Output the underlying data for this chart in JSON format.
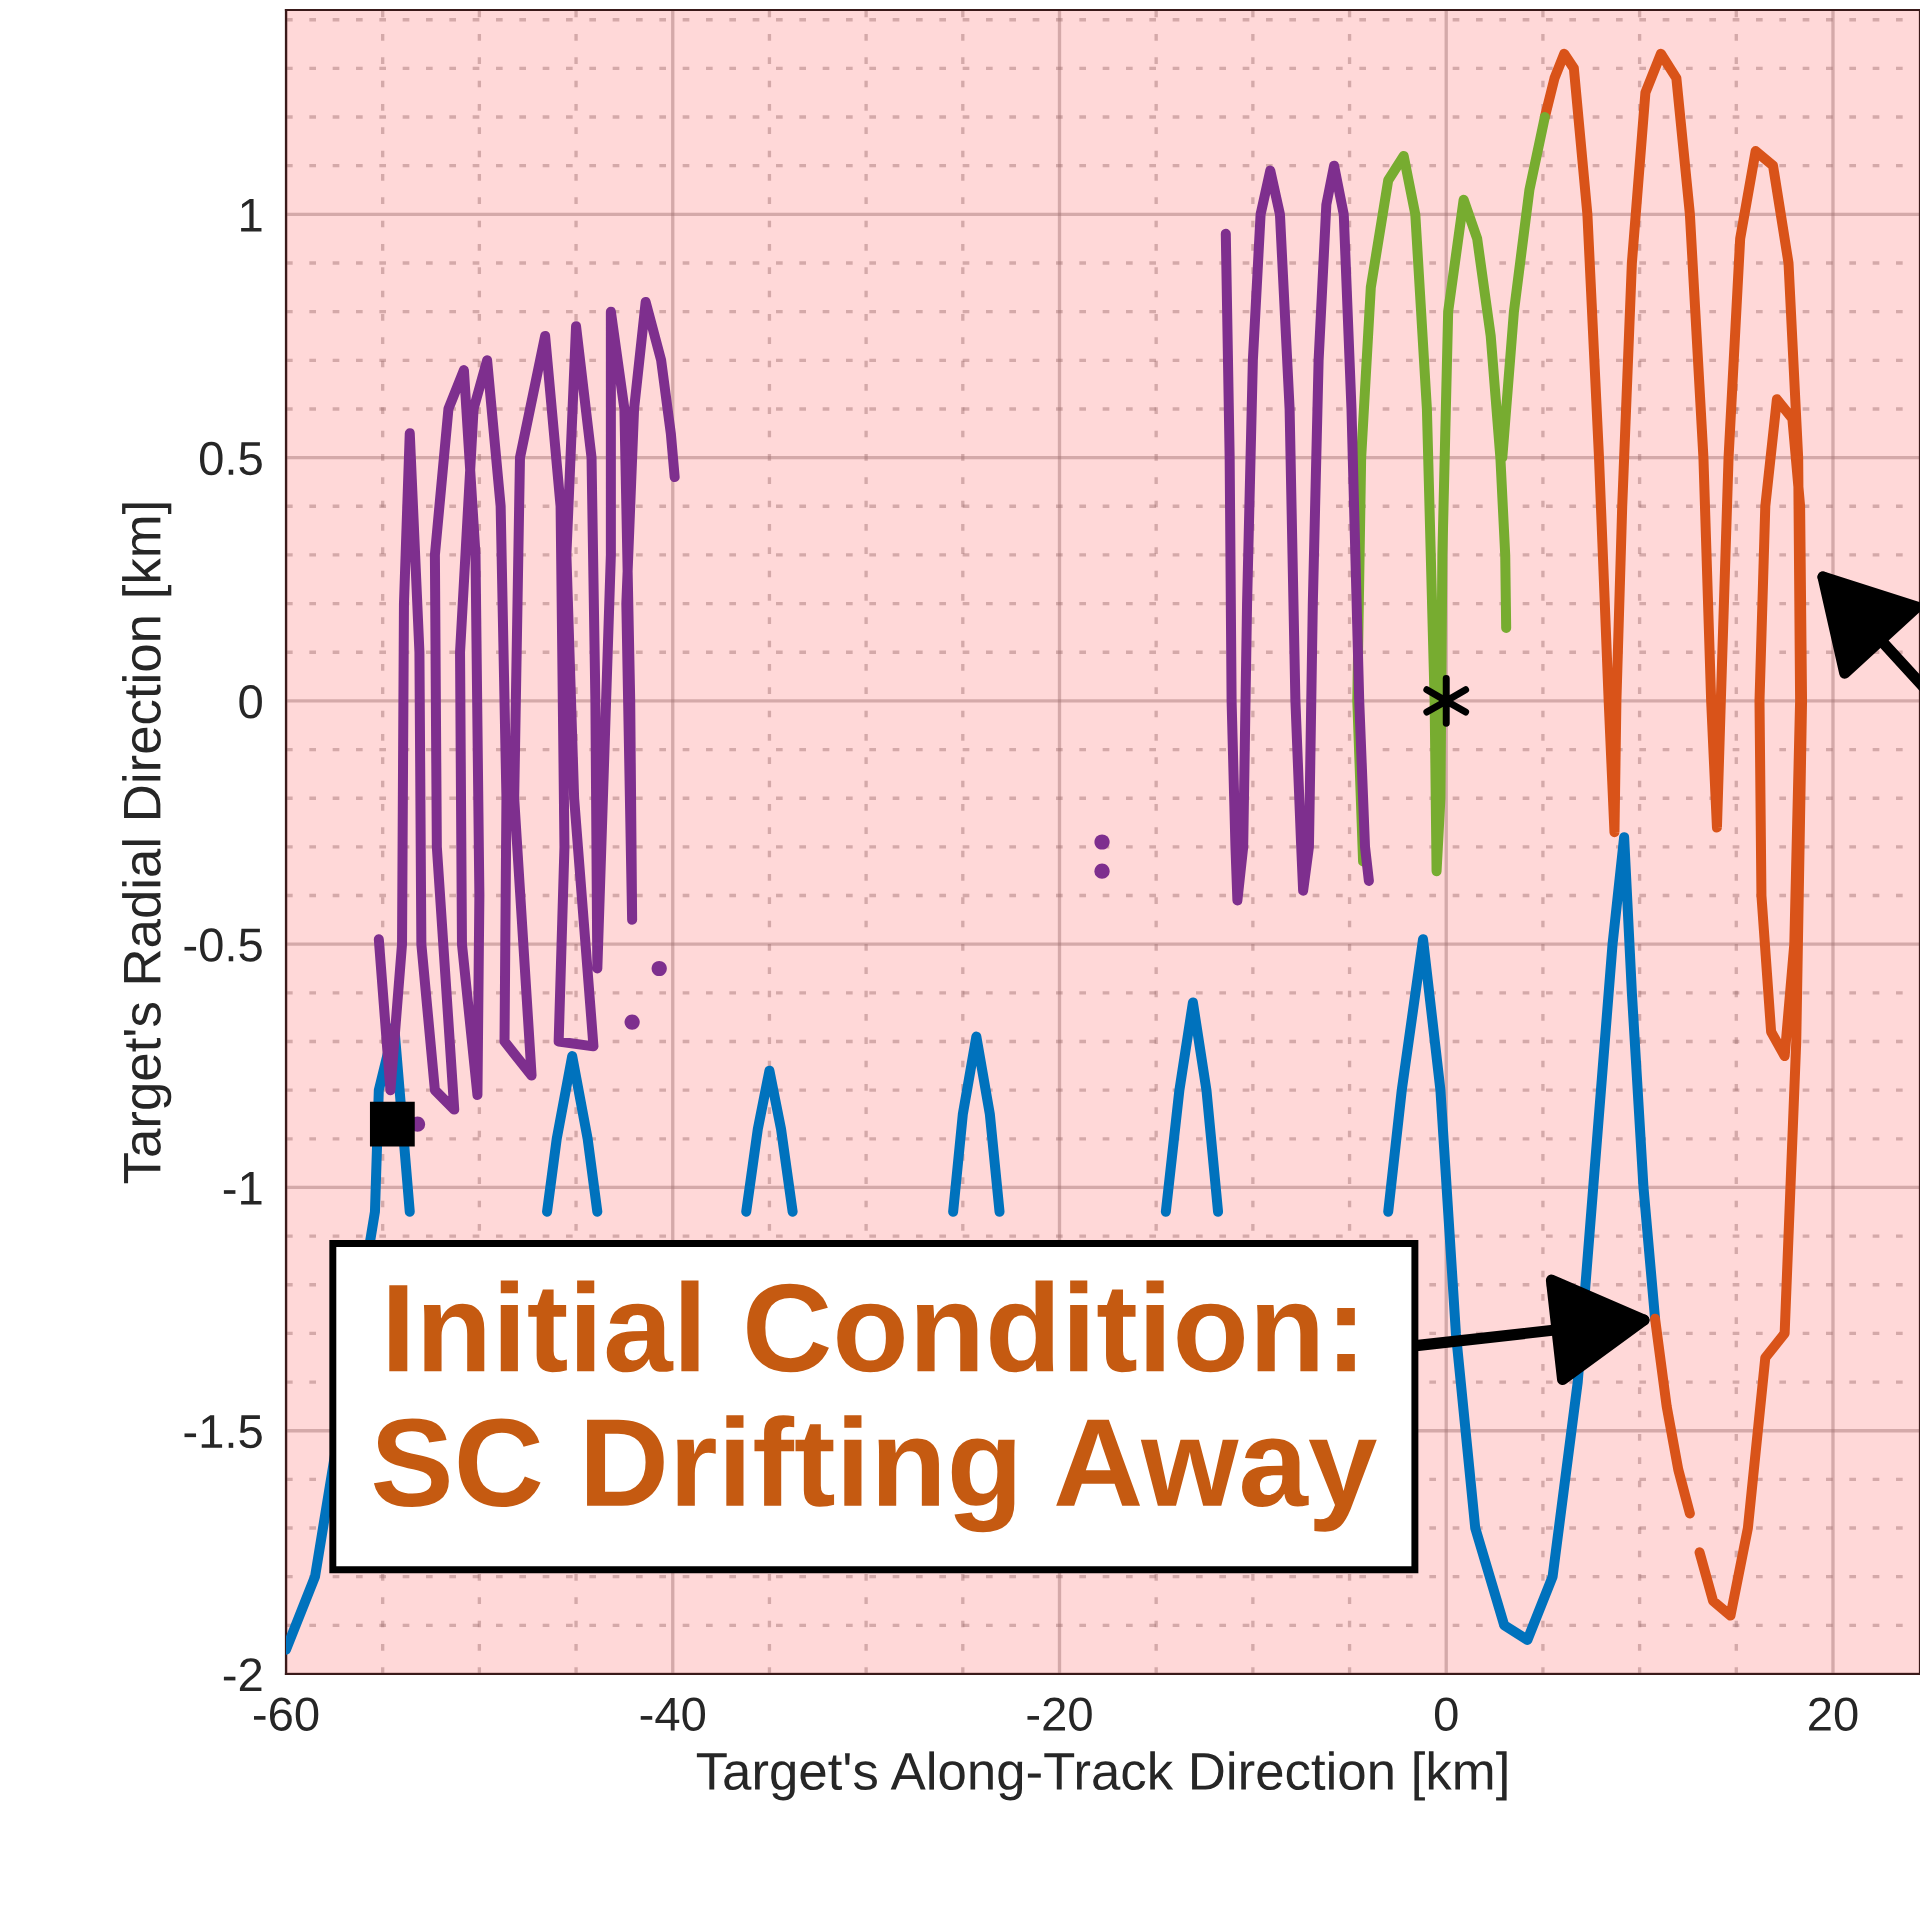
{
  "chart_data": {
    "type": "line",
    "xlabel": "Target's Along-Track Direction [km]",
    "ylabel": "Target's Radial Direction [km]",
    "xlim": [
      -60,
      24.5
    ],
    "ylim": [
      -2,
      1.42
    ],
    "xticks": [
      -60,
      {
        "value": -55,
        "label": null
      },
      {
        "value": -50,
        "label": null
      },
      {
        "value": -45,
        "label": null
      },
      -40,
      {
        "value": -35,
        "label": null
      },
      {
        "value": -30,
        "label": null
      },
      {
        "value": -25,
        "label": null
      },
      -20,
      {
        "value": -15,
        "label": null
      },
      {
        "value": -10,
        "label": null
      },
      {
        "value": -5,
        "label": null
      },
      0,
      {
        "value": 5,
        "label": null
      },
      {
        "value": 10,
        "label": null
      },
      {
        "value": 15,
        "label": null
      },
      20
    ],
    "yticks": [
      -2,
      {
        "value": -1.9,
        "label": null
      },
      {
        "value": -1.8,
        "label": null
      },
      {
        "value": -1.7,
        "label": null
      },
      {
        "value": -1.6,
        "label": null
      },
      -1.5,
      {
        "value": -1.4,
        "label": null
      },
      {
        "value": -1.3,
        "label": null
      },
      {
        "value": -1.2,
        "label": null
      },
      {
        "value": -1.1,
        "label": null
      },
      -1,
      {
        "value": -0.9,
        "label": null
      },
      {
        "value": -0.8,
        "label": null
      },
      {
        "value": -0.7,
        "label": null
      },
      {
        "value": -0.6,
        "label": null
      },
      -0.5,
      {
        "value": -0.4,
        "label": null
      },
      {
        "value": -0.3,
        "label": null
      },
      {
        "value": -0.2,
        "label": null
      },
      {
        "value": -0.1,
        "label": null
      },
      0,
      {
        "value": 0.1,
        "label": null
      },
      {
        "value": 0.2,
        "label": null
      },
      {
        "value": 0.3,
        "label": null
      },
      {
        "value": 0.4,
        "label": null
      },
      0.5,
      {
        "value": 0.6,
        "label": null
      },
      {
        "value": 0.7,
        "label": null
      },
      {
        "value": 0.8,
        "label": null
      },
      {
        "value": 0.9,
        "label": null
      },
      1,
      {
        "value": 1.1,
        "label": null
      },
      {
        "value": 1.2,
        "label": null
      },
      {
        "value": 1.3,
        "label": null
      },
      {
        "value": 1.4,
        "label": null
      }
    ],
    "grid": true,
    "series": [
      {
        "color": "#0072bd",
        "x": [
          -60,
          -58.5,
          -55.4,
          -55.2,
          -54.4,
          -53.6,
          -50.5,
          -46.5,
          -46,
          -45.2,
          -44.4,
          -43.9,
          -40,
          -36.2,
          -35.6,
          -35,
          -34.4,
          -33.8,
          -30.5,
          -25.5,
          -25,
          -24.3,
          -23.6,
          -23.1,
          -19.5,
          -14.5,
          -13.8,
          -13.1,
          -12.4,
          -11.8,
          -6.9,
          -3.0,
          -2.3,
          -1.2,
          -0.3,
          0.5,
          1.5,
          3,
          4.2,
          5.5,
          6.8,
          7.8,
          8.6,
          9.2,
          9.6,
          10.2,
          10.8
        ],
        "values": [
          -1.95,
          -1.8,
          -1.05,
          -0.8,
          -0.67,
          -1.05,
          null,
          -1.05,
          -0.9,
          -0.73,
          -0.9,
          -1.05,
          null,
          -1.05,
          -0.88,
          -0.76,
          -0.88,
          -1.05,
          null,
          -1.05,
          -0.85,
          -0.69,
          -0.85,
          -1.05,
          null,
          -1.05,
          -0.8,
          -0.62,
          -0.8,
          -1.05,
          null,
          -1.05,
          -0.8,
          -0.49,
          -0.8,
          -1.3,
          -1.7,
          -1.9,
          -1.93,
          -1.8,
          -1.4,
          -0.9,
          -0.5,
          -0.28,
          -0.6,
          -1.0,
          -1.27
        ]
      },
      {
        "color": "#d95319",
        "x": [
          10.8,
          11.4,
          12.0,
          12.6,
          12.8,
          13.1,
          13.8,
          14.7,
          15.6,
          16.5,
          17.5,
          18.1,
          18.4,
          18.3,
          17.9,
          17.1,
          16.5,
          16.2,
          16.3,
          16.8,
          17.5,
          18.0,
          18.3,
          18.2,
          17.7,
          16.9,
          16.0,
          15.2,
          14.6,
          14.2,
          14.0,
          13.7,
          13.3,
          12.6,
          11.9,
          11.1,
          10.3,
          9.6,
          9.1,
          8.8,
          8.7,
          8.4,
          7.9,
          7.3,
          6.6,
          6.1,
          5.6,
          5.1
        ],
        "values": [
          -1.27,
          -1.45,
          -1.58,
          -1.67,
          null,
          -1.75,
          -1.85,
          -1.88,
          -1.7,
          -1.35,
          -1.3,
          -0.7,
          0,
          0.4,
          0.58,
          0.62,
          0.4,
          0,
          -0.4,
          -0.68,
          -0.73,
          -0.5,
          0,
          0.5,
          0.9,
          1.1,
          1.13,
          0.95,
          0.5,
          0,
          -0.26,
          0,
          0.5,
          1.0,
          1.28,
          1.33,
          1.25,
          0.9,
          0.4,
          0,
          -0.27,
          0,
          0.5,
          1.0,
          1.3,
          1.33,
          1.28,
          1.2
        ]
      },
      {
        "color": "#77ac30",
        "x": [
          5.1,
          4.3,
          3.5,
          2.9,
          3.0,
          3.1,
          3.05,
          2.8,
          2.3,
          1.6,
          0.9,
          0.1,
          -0.2,
          -0.3,
          -0.5,
          -0.6,
          -1.0,
          -1.6,
          -2.2,
          -3.0,
          -3.9,
          -4.4,
          -4.6,
          -4.3
        ],
        "values": [
          1.2,
          1.05,
          0.8,
          0.5,
          null,
          0.15,
          0.3,
          0.5,
          0.75,
          0.95,
          1.03,
          0.8,
          0.3,
          -0.2,
          -0.35,
          0,
          0.6,
          1.0,
          1.12,
          1.07,
          0.85,
          0.5,
          0,
          -0.33
        ]
      },
      {
        "color": "#7e2f8e",
        "x": [
          -11.4,
          -11.2,
          -11.1,
          -10.9,
          -10.8,
          -10.5,
          -10.3,
          -10.0,
          -9.6,
          -9.1,
          -8.6,
          -8.1,
          -7.8,
          -7.5,
          -7.4,
          -7.1,
          -6.9,
          -6.6,
          -6.2,
          -5.8,
          -5.3,
          -4.9,
          -4.5,
          -4.2,
          -4.0
        ],
        "values": [
          0.96,
          0.5,
          0,
          -0.3,
          -0.41,
          -0.3,
          0.2,
          0.7,
          1.0,
          1.09,
          1.0,
          0.6,
          0,
          -0.3,
          -0.39,
          -0.3,
          0.2,
          0.7,
          1.02,
          1.1,
          1.0,
          0.6,
          0,
          -0.3,
          -0.37
        ]
      },
      {
        "color": "#7e2f8e",
        "x": [
          -55.2,
          -54.6,
          -54.0,
          -53.9,
          -53.6,
          -53.1,
          -53.0,
          -52.3,
          -51.3,
          -52.2,
          -52.3,
          -51.6,
          -50.8,
          -50.2,
          -50.0,
          -50.1,
          -50.9,
          -51.0,
          -50.3,
          -49.6,
          -48.9,
          -48.6,
          -48.7,
          -47.3,
          -48.2,
          -47.9,
          -46.6,
          -45.8,
          -45.6,
          -45.9,
          -44.1,
          -45.1,
          -45.5,
          -45.0,
          -44.2,
          -44.0,
          -43.9,
          -43.2,
          -43.2,
          -42.5,
          -42.2,
          -42.1,
          -42.4,
          -42.0,
          -41.4,
          -40.6,
          -40.1,
          -39.9
        ],
        "values": [
          -0.49,
          -0.8,
          -0.5,
          0.2,
          0.55,
          0.1,
          -0.5,
          -0.8,
          -0.84,
          -0.3,
          0.3,
          0.6,
          0.68,
          0.3,
          -0.4,
          -0.81,
          -0.5,
          0.1,
          0.6,
          0.7,
          0.4,
          -0.2,
          -0.7,
          -0.77,
          -0.2,
          0.5,
          0.75,
          0.4,
          -0.3,
          -0.7,
          -0.71,
          -0.2,
          0.3,
          0.77,
          0.5,
          0,
          -0.55,
          0.3,
          0.8,
          0.6,
          0,
          -0.45,
          0.2,
          0.6,
          0.82,
          0.7,
          0.55,
          0.46
        ]
      },
      {
        "type": "scatter",
        "marker": "circle",
        "color": "#7e2f8e",
        "x": [
          -17.8,
          -17.8,
          -40.7,
          -42.1,
          -53.2
        ],
        "values": [
          -0.29,
          -0.35,
          -0.55,
          -0.66,
          -0.87
        ]
      },
      {
        "type": "scatter",
        "marker": "square",
        "color": "#000000",
        "x": [
          -54.5
        ],
        "values": [
          -0.87
        ]
      },
      {
        "type": "scatter",
        "marker": "cross",
        "color": "#000000",
        "x": [
          0
        ],
        "values": [
          0
        ]
      }
    ],
    "annotations": [
      {
        "text": "Initial Condition:\nSC Drifting Away",
        "x": 10.8,
        "y": -1.27
      }
    ]
  }
}
